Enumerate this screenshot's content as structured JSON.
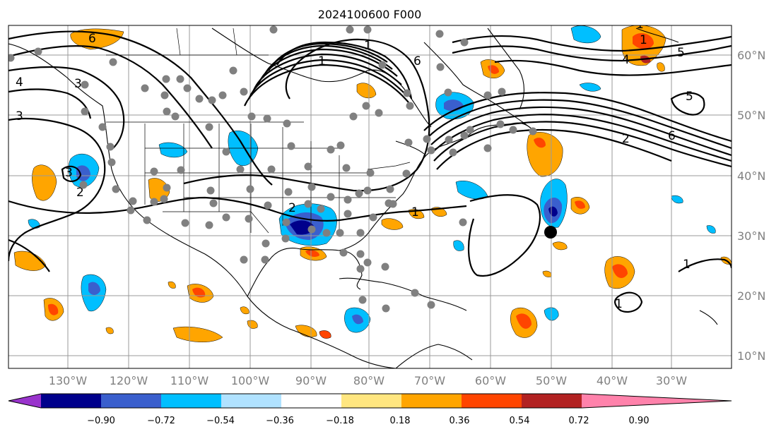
{
  "title": "2024100600 F000",
  "longitude_labels": [
    "130°W",
    "120°W",
    "110°W",
    "100°W",
    "90°W",
    "80°W",
    "70°W",
    "60°W",
    "50°W",
    "40°W",
    "30°W"
  ],
  "latitude_labels": [
    "60°N",
    "50°N",
    "40°N",
    "30°N",
    "20°N",
    "10°N"
  ],
  "colorbar": {
    "ticks": [
      "−0.90",
      "−0.72",
      "−0.54",
      "−0.36",
      "−0.18",
      "0.18",
      "0.36",
      "0.54",
      "0.72",
      "0.90"
    ],
    "colors": [
      "#9933cc",
      "#00008b",
      "#3a5fcd",
      "#00bfff",
      "#b0e2ff",
      "#ffffff",
      "#ffe680",
      "#ffa500",
      "#ff4500",
      "#b22222",
      "#ff82ab"
    ]
  },
  "contour_labels": [
    "6",
    "4",
    "3",
    "3",
    "1",
    "1",
    "2",
    "6",
    "1",
    "4",
    "5",
    "5",
    "2",
    "6",
    "3",
    "2",
    "1",
    "1",
    "1",
    "1"
  ],
  "station_marker_color": "#808080",
  "storm_marker_color": "#000000"
}
